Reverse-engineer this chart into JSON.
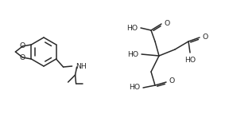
{
  "background": "#ffffff",
  "line_color": "#2a2a2a",
  "line_width": 1.1,
  "font_size": 6.2,
  "fig_width": 2.88,
  "fig_height": 1.53,
  "dpi": 100,
  "xlim": [
    0,
    288
  ],
  "ylim": [
    0,
    153
  ]
}
